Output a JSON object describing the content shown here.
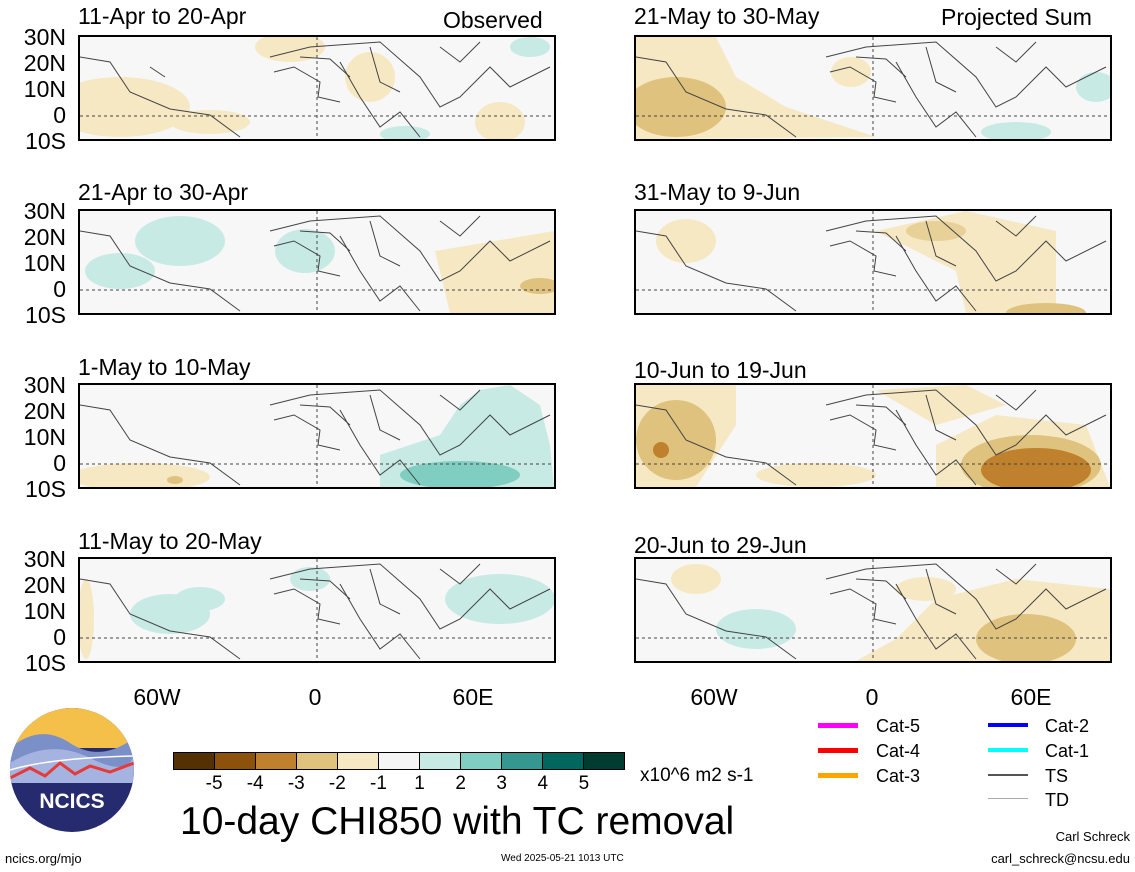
{
  "header": {
    "observed": "Observed",
    "projected": "Projected Sum"
  },
  "panels": [
    {
      "title": "11-Apr to 20-Apr"
    },
    {
      "title": "21-Apr to 30-Apr"
    },
    {
      "title": "1-May to 10-May"
    },
    {
      "title": "11-May to 20-May"
    },
    {
      "title": "21-May to 30-May"
    },
    {
      "title": "31-May to 9-Jun"
    },
    {
      "title": "10-Jun to 19-Jun"
    },
    {
      "title": "20-Jun to 29-Jun"
    }
  ],
  "lat_labels": [
    "30N",
    "20N",
    "10N",
    "0",
    "10S"
  ],
  "lon_labels": [
    "60W",
    "0",
    "60E"
  ],
  "colorbar": {
    "ticks": [
      "-5",
      "-4",
      "-3",
      "-2",
      "-1",
      "1",
      "2",
      "3",
      "4",
      "5"
    ],
    "colors": [
      "#543005",
      "#8c510a",
      "#bf812d",
      "#dfc27d",
      "#f6e8c3",
      "#f5f5f5",
      "#c7eae5",
      "#80cdc1",
      "#35978f",
      "#01665e",
      "#003c30"
    ],
    "units": "x10^6 m2 s-1"
  },
  "title": "10-day CHI850 with TC removal",
  "legend": [
    {
      "label": "Cat-5",
      "color": "#ff00ff"
    },
    {
      "label": "Cat-4",
      "color": "#ff0000"
    },
    {
      "label": "Cat-3",
      "color": "#ffa500"
    },
    {
      "label": "Cat-2",
      "color": "#0000ff"
    },
    {
      "label": "Cat-1",
      "color": "#00ffff"
    },
    {
      "label": "TS",
      "color": "#555555"
    },
    {
      "label": "TD",
      "color": "#aaaaaa"
    }
  ],
  "logo": {
    "text": "NCICS"
  },
  "footer": {
    "url": "ncics.org/mjo",
    "timestamp": "Wed 2025-05-21 1013 UTC",
    "author": "Carl Schreck",
    "email": "carl_schreck@ncsu.edu"
  }
}
